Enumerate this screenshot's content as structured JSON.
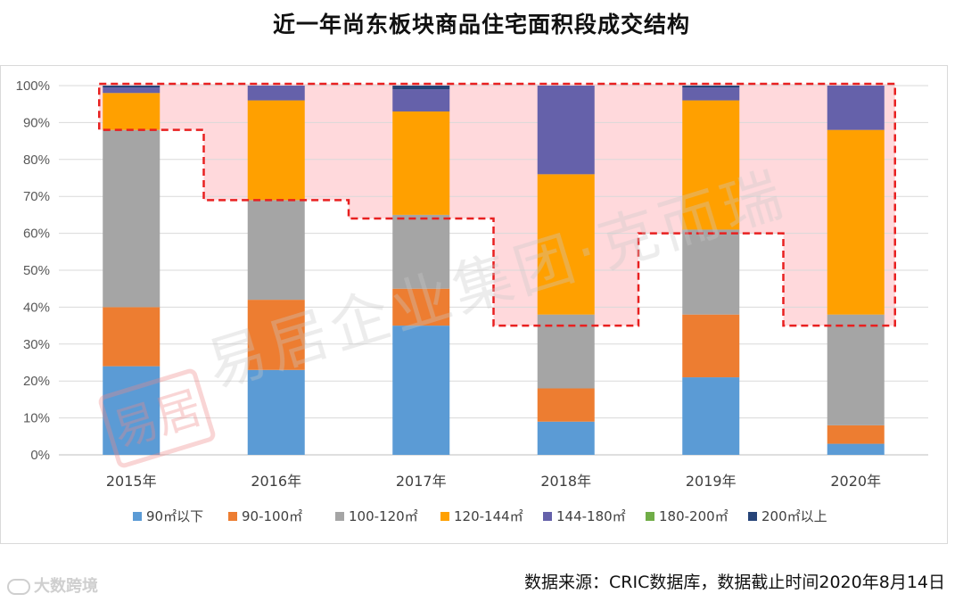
{
  "chart_data": {
    "type": "bar",
    "stacked": true,
    "title": "近一年尚东板块商品住宅面积段成交结构",
    "categories": [
      "2015年",
      "2016年",
      "2017年",
      "2018年",
      "2019年",
      "2020年"
    ],
    "ylim": [
      0,
      100
    ],
    "ytick_labels": [
      "0%",
      "10%",
      "20%",
      "30%",
      "40%",
      "50%",
      "60%",
      "70%",
      "80%",
      "90%",
      "100%"
    ],
    "legend_position": "bottom",
    "series": [
      {
        "name": "90㎡以下",
        "color": "#5b9bd5",
        "values": [
          24,
          23,
          35,
          9,
          21,
          3
        ]
      },
      {
        "name": "90-100㎡",
        "color": "#ed7d31",
        "values": [
          16,
          19,
          10,
          9,
          17,
          5
        ]
      },
      {
        "name": "100-120㎡",
        "color": "#a5a5a5",
        "values": [
          48,
          27,
          20,
          20,
          23,
          30
        ]
      },
      {
        "name": "120-144㎡",
        "color": "#ffa000",
        "values": [
          10,
          27,
          28,
          38,
          35,
          50
        ]
      },
      {
        "name": "144-180㎡",
        "color": "#6561aa",
        "values": [
          1.5,
          4,
          6,
          24,
          3.5,
          12
        ]
      },
      {
        "name": "180-200㎡",
        "color": "#70ad47",
        "values": [
          0,
          0,
          0,
          0,
          0,
          0
        ]
      },
      {
        "name": "200㎡以上",
        "color": "#264478",
        "values": [
          0.5,
          0,
          1,
          0,
          0.5,
          0
        ]
      }
    ],
    "highlight": {
      "description": "dashed red outline around upper segments",
      "color": "#e82020",
      "fill": "#ffd9dc",
      "lower_bounds": [
        88,
        69,
        64,
        35,
        60,
        35
      ]
    }
  },
  "watermark": {
    "text": "易居企业集团·克而瑞",
    "stamp": "易居"
  },
  "brand_watermark": "大数跨境",
  "source_note": "数据来源：CRIC数据库，数据截止时间2020年8月14日"
}
